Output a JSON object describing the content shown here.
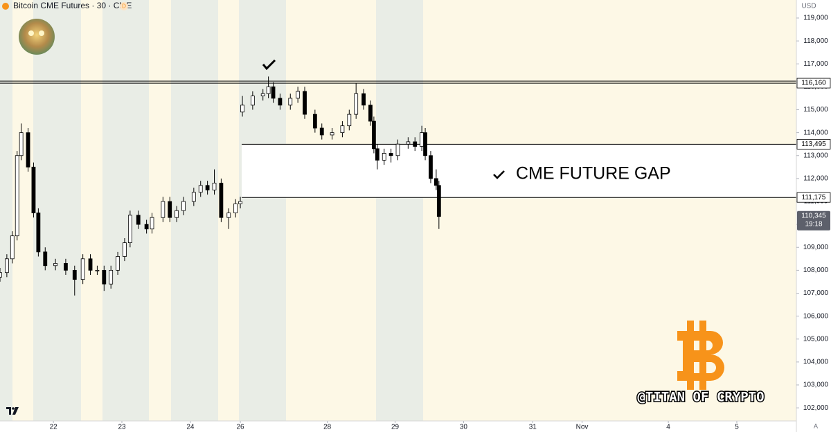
{
  "chart_data": {
    "type": "candlestick",
    "title": "Bitcoin CME Futures · 30 · CME",
    "badge": "D",
    "currency": "USD",
    "scale_mode": "A",
    "annotation": "CME FUTURE GAP",
    "watermark": "@TITAN OF CRYPTO",
    "up_color": "#ffffff",
    "down_color": "#000000",
    "x": [
      -0.78,
      -0.68,
      -0.6,
      -0.53,
      -0.47,
      -0.37,
      -0.29,
      -0.22,
      -0.12,
      0.03,
      0.18,
      0.31,
      0.43,
      0.54,
      0.64,
      0.74,
      0.84,
      0.94,
      1.04,
      1.12,
      1.24,
      1.36,
      1.44,
      1.6,
      1.7,
      1.8,
      1.9,
      2.05,
      2.15,
      2.25,
      2.35,
      2.45,
      2.56,
      2.66,
      2.73,
      2.76,
      2.91,
      3.06,
      3.14,
      3.21,
      3.31,
      3.46,
      3.57,
      3.67,
      3.82,
      3.92,
      4.07,
      4.22,
      4.32,
      4.42,
      4.53,
      4.63,
      4.68,
      4.73,
      4.83,
      4.93,
      5.03,
      5.18,
      5.28,
      5.38,
      5.43,
      5.51,
      5.59,
      5.63
    ],
    "open": [
      107700,
      107900,
      108500,
      109500,
      113000,
      114000,
      112500,
      110500,
      108800,
      108200,
      108300,
      108000,
      107600,
      108500,
      108000,
      108000,
      107400,
      108000,
      108600,
      109200,
      110400,
      110000,
      109800,
      110300,
      111000,
      110300,
      110600,
      111000,
      111400,
      111700,
      111500,
      111800,
      110300,
      110500,
      110900,
      114900,
      115200,
      115600,
      115700,
      116000,
      115500,
      115200,
      115500,
      115800,
      114800,
      114200,
      113900,
      114000,
      114300,
      114800,
      115700,
      115200,
      114500,
      113300,
      112800,
      113100,
      113000,
      113500,
      113600,
      113400,
      114000,
      113000,
      112000,
      111700
    ],
    "high": [
      108100,
      108700,
      109700,
      113200,
      114400,
      114200,
      112700,
      110700,
      109000,
      108500,
      108500,
      108200,
      108700,
      108700,
      108200,
      108200,
      108200,
      108800,
      109400,
      110600,
      110600,
      110200,
      110500,
      111200,
      111200,
      110800,
      111200,
      111600,
      111900,
      111900,
      112400,
      112000,
      110700,
      111100,
      111200,
      115600,
      115800,
      115900,
      116450,
      116200,
      115700,
      115700,
      116000,
      116000,
      115000,
      114400,
      114200,
      114500,
      115000,
      116150,
      115900,
      115400,
      114700,
      113500,
      113300,
      113300,
      113700,
      113800,
      113800,
      114300,
      114200,
      113200,
      112400,
      111900
    ],
    "low": [
      107500,
      107700,
      108300,
      109300,
      112800,
      112300,
      110300,
      108600,
      108000,
      108000,
      107800,
      106900,
      107400,
      107800,
      107800,
      107100,
      107200,
      107800,
      108400,
      109000,
      109800,
      109600,
      109600,
      110100,
      110100,
      110100,
      110400,
      110800,
      111200,
      111300,
      111300,
      110100,
      109800,
      110300,
      110700,
      114700,
      115000,
      115400,
      115500,
      115300,
      115000,
      115000,
      115300,
      114600,
      114000,
      113700,
      113700,
      113800,
      114100,
      114600,
      115000,
      114300,
      113100,
      112400,
      112600,
      112700,
      112800,
      113300,
      113200,
      113200,
      112800,
      111800,
      111500,
      109800
    ],
    "close": [
      107900,
      108500,
      109500,
      113000,
      114000,
      112500,
      110500,
      108800,
      108200,
      108300,
      108000,
      107600,
      108500,
      108000,
      108000,
      107400,
      108000,
      108600,
      109200,
      110400,
      110000,
      109800,
      110300,
      111000,
      110300,
      110600,
      111000,
      111400,
      111700,
      111500,
      111800,
      110300,
      110500,
      110900,
      111000,
      115200,
      115600,
      115700,
      116000,
      115500,
      115200,
      115500,
      115800,
      114800,
      114200,
      113900,
      114000,
      114300,
      114800,
      115700,
      115200,
      114500,
      113300,
      112800,
      113100,
      113000,
      113500,
      113600,
      113400,
      114000,
      113000,
      112000,
      111700,
      110345
    ],
    "xlim": [
      -0.78,
      10.85
    ],
    "ylim": [
      101430,
      119785
    ],
    "xticks": [
      {
        "value": 0,
        "label": "22"
      },
      {
        "value": 1,
        "label": "23"
      },
      {
        "value": 2,
        "label": "24"
      },
      {
        "value": 2.73,
        "label": "26"
      },
      {
        "value": 4,
        "label": "28"
      },
      {
        "value": 4.99,
        "label": "29"
      },
      {
        "value": 5.99,
        "label": "30"
      },
      {
        "value": 7,
        "label": "31"
      },
      {
        "value": 7.72,
        "label": "Nov"
      },
      {
        "value": 8.98,
        "label": "4"
      },
      {
        "value": 9.98,
        "label": "5"
      }
    ],
    "yticks": [
      {
        "value": 102000,
        "label": "102,000"
      },
      {
        "value": 103000,
        "label": "103,000"
      },
      {
        "value": 104000,
        "label": "104,000"
      },
      {
        "value": 105000,
        "label": "105,000"
      },
      {
        "value": 106000,
        "label": "106,000"
      },
      {
        "value": 107000,
        "label": "107,000"
      },
      {
        "value": 108000,
        "label": "108,000"
      },
      {
        "value": 109000,
        "label": "109,000"
      },
      {
        "value": 110000,
        "label": "110,000"
      },
      {
        "value": 111000,
        "label": "111,000"
      },
      {
        "value": 112000,
        "label": "112,000"
      },
      {
        "value": 113000,
        "label": "113,000"
      },
      {
        "value": 114000,
        "label": "114,000"
      },
      {
        "value": 115000,
        "label": "115,000"
      },
      {
        "value": 116000,
        "label": "116,000"
      },
      {
        "value": 117000,
        "label": "117,000"
      },
      {
        "value": 118000,
        "label": "118,000"
      },
      {
        "value": 119000,
        "label": "119,000"
      }
    ],
    "levels": [
      {
        "value": 116160,
        "label": "116,160"
      },
      {
        "value": 113495,
        "label": "113,495"
      },
      {
        "value": 111175,
        "label": "111,175"
      }
    ],
    "last_price": {
      "value": 110345,
      "label": "110,345"
    },
    "countdown": "19:18"
  }
}
